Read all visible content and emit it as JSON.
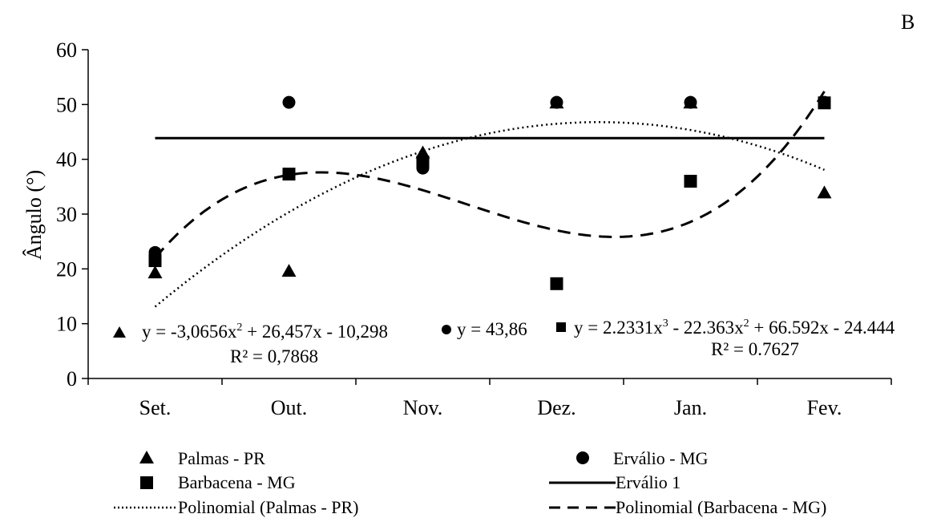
{
  "chart_data": {
    "type": "scatter",
    "panel_label": "B",
    "ylabel": "Ângulo (°)",
    "xlabel": "",
    "categories": [
      "Set.",
      "Out.",
      "Nov.",
      "Dez.",
      "Jan.",
      "Fev."
    ],
    "ylim": [
      0,
      60
    ],
    "yticks": [
      "0",
      "10",
      "20",
      "30",
      "40",
      "50",
      "60"
    ],
    "grid": false,
    "legend_position": "bottom",
    "series": [
      {
        "name": "Palmas - PR",
        "marker": "triangle",
        "values": [
          19.3,
          19.6,
          41.2,
          50.3,
          50.3,
          33.9
        ]
      },
      {
        "name": "Erválio - MG",
        "marker": "circle",
        "values": [
          23.0,
          50.4,
          38.4,
          50.4,
          50.4,
          50.4
        ]
      },
      {
        "name": "Barbacena - MG",
        "marker": "square",
        "values": [
          21.5,
          37.3,
          39.5,
          17.3,
          36.0,
          50.3
        ]
      }
    ],
    "fit_lines": [
      {
        "name": "Erválio 1",
        "style": "solid",
        "coefficients": [
          43.86
        ]
      },
      {
        "name": "Polinomial (Palmas - PR)",
        "style": "dotted",
        "coefficients": [
          -10.298,
          26.457,
          -3.0656
        ]
      },
      {
        "name": "Polinomial (Barbacena - MG)",
        "style": "dashed",
        "coefficients": [
          -24.444,
          66.592,
          -22.363,
          2.2331
        ]
      }
    ],
    "equations": [
      {
        "marker": "triangle",
        "parts": [
          "y = -3,0656x",
          "2",
          " + 26,457x - 10,298"
        ],
        "r2": "R² = 0,7868"
      },
      {
        "marker": "circle",
        "parts": [
          "y = 43,86"
        ]
      },
      {
        "marker": "square",
        "parts": [
          "y = 2.2331x",
          "3",
          " - 22.363x",
          "2",
          " + 66.592x - 24.444"
        ],
        "r2": "R² = 0.7627"
      }
    ]
  }
}
